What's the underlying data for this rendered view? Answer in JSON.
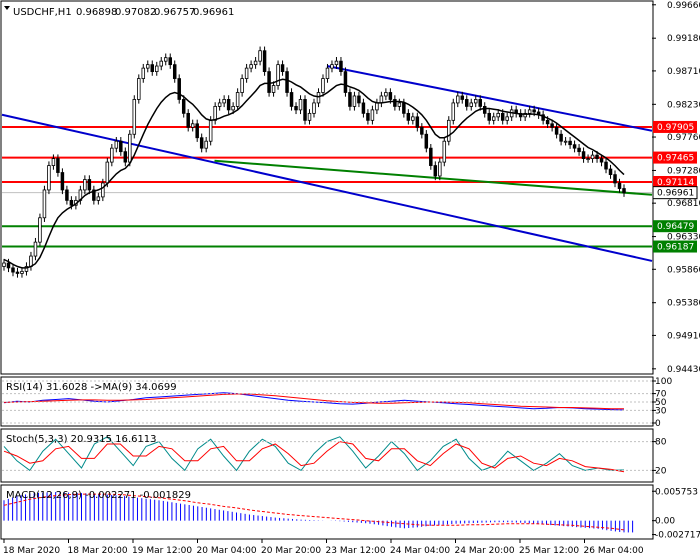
{
  "chart_data": {
    "type": "candlestick",
    "symbol": "USDCHF,H1",
    "ohlc": [
      "0.96898",
      "0.97082",
      "0.96757",
      "0.96961"
    ],
    "current_price": "0.96961",
    "price_axis": {
      "ylim": [
        0.9437,
        0.997
      ],
      "ticks": [
        "0.99660",
        "0.99180",
        "0.98710",
        "0.98230",
        "0.97760",
        "0.97280",
        "0.96810",
        "0.96330",
        "0.95860",
        "0.95380",
        "0.94910",
        "0.94430"
      ]
    },
    "time_axis": [
      "18 Mar 2020",
      "18 Mar 20:00",
      "19 Mar 12:00",
      "20 Mar 04:00",
      "20 Mar 20:00",
      "23 Mar 12:00",
      "24 Mar 04:00",
      "24 Mar 20:00",
      "25 Mar 12:00",
      "26 Mar 04:00"
    ],
    "horizontal_levels": [
      {
        "value": 0.97905,
        "label": "0.97905",
        "color": "#ff0000"
      },
      {
        "value": 0.97465,
        "label": "0.97465",
        "color": "#ff0000"
      },
      {
        "value": 0.97114,
        "label": "0.97114",
        "color": "#ff0000"
      },
      {
        "value": 0.96479,
        "label": "0.96479",
        "color": "#008000"
      },
      {
        "value": 0.96187,
        "label": "0.96187",
        "color": "#008000"
      }
    ],
    "trendlines": [
      {
        "color": "#0000cc",
        "from": [
          0,
          0.9808
        ],
        "to": [
          156,
          0.9598
        ]
      },
      {
        "color": "#0000cc",
        "from": [
          78,
          0.9878
        ],
        "to": [
          156,
          0.9785
        ]
      },
      {
        "color": "#008000",
        "from": [
          51,
          0.9742
        ],
        "to": [
          156,
          0.9693
        ]
      }
    ],
    "price_series": [
      0.9595,
      0.9588,
      0.9582,
      0.958,
      0.9583,
      0.959,
      0.9605,
      0.9625,
      0.966,
      0.97,
      0.9735,
      0.9745,
      0.9725,
      0.97,
      0.9685,
      0.9678,
      0.9685,
      0.97,
      0.9715,
      0.97,
      0.9685,
      0.969,
      0.971,
      0.974,
      0.976,
      0.977,
      0.9755,
      0.974,
      0.978,
      0.983,
      0.986,
      0.9875,
      0.988,
      0.987,
      0.9878,
      0.9885,
      0.989,
      0.988,
      0.986,
      0.983,
      0.981,
      0.979,
      0.9795,
      0.9775,
      0.976,
      0.977,
      0.98,
      0.982,
      0.9825,
      0.983,
      0.9815,
      0.982,
      0.984,
      0.986,
      0.9875,
      0.988,
      0.9885,
      0.99,
      0.987,
      0.984,
      0.985,
      0.988,
      0.987,
      0.984,
      0.982,
      0.9815,
      0.983,
      0.98,
      0.981,
      0.9825,
      0.984,
      0.986,
      0.9875,
      0.988,
      0.9885,
      0.987,
      0.984,
      0.982,
      0.9835,
      0.9825,
      0.981,
      0.98,
      0.9815,
      0.9825,
      0.9835,
      0.984,
      0.983,
      0.982,
      0.9825,
      0.981,
      0.98,
      0.9805,
      0.979,
      0.978,
      0.976,
      0.9735,
      0.972,
      0.974,
      0.977,
      0.98,
      0.9825,
      0.9835,
      0.983,
      0.982,
      0.9825,
      0.983,
      0.982,
      0.981,
      0.98,
      0.9805,
      0.981,
      0.98,
      0.9805,
      0.9815,
      0.981,
      0.9805,
      0.981,
      0.9815,
      0.9812,
      0.9808,
      0.98,
      0.9795,
      0.979,
      0.978,
      0.977,
      0.977,
      0.9765,
      0.976,
      0.9755,
      0.9745,
      0.9745,
      0.975,
      0.9745,
      0.974,
      0.973,
      0.9722,
      0.971,
      0.9702,
      0.9696
    ],
    "ma_series": [
      0.96,
      0.9597,
      0.9593,
      0.959,
      0.9588,
      0.9588,
      0.959,
      0.9594,
      0.9603,
      0.9617,
      0.9633,
      0.9648,
      0.966,
      0.9667,
      0.9672,
      0.9676,
      0.968,
      0.9686,
      0.9692,
      0.9696,
      0.9698,
      0.97,
      0.9703,
      0.9709,
      0.9716,
      0.9723,
      0.9728,
      0.9731,
      0.9738,
      0.975,
      0.9765,
      0.978,
      0.9794,
      0.9806,
      0.9817,
      0.9826,
      0.9833,
      0.9838,
      0.984,
      0.9838,
      0.9834,
      0.9828,
      0.9823,
      0.9816,
      0.9808,
      0.9802,
      0.98,
      0.9801,
      0.9803,
      0.9806,
      0.9808,
      0.9811,
      0.9815,
      0.9821,
      0.9828,
      0.9835,
      0.9842,
      0.985,
      0.9853,
      0.9853,
      0.9854,
      0.9857,
      0.9859,
      0.9858,
      0.9855,
      0.9851,
      0.9848,
      0.9843,
      0.9838,
      0.9835,
      0.9834,
      0.9836,
      0.984,
      0.9845,
      0.985,
      0.9852,
      0.9851,
      0.9848,
      0.9846,
      0.9843,
      0.9838,
      0.9832,
      0.9827,
      0.9825,
      0.9825,
      0.9826,
      0.9827,
      0.9827,
      0.9827,
      0.9826,
      0.9823,
      0.9819,
      0.9814,
      0.9808,
      0.98,
      0.979,
      0.978,
      0.9775,
      0.9775,
      0.9778,
      0.9783,
      0.979,
      0.9797,
      0.9803,
      0.9808,
      0.9813,
      0.9816,
      0.9817,
      0.9817,
      0.9816,
      0.9815,
      0.9813,
      0.9812,
      0.9811,
      0.981,
      0.9809,
      0.9809,
      0.9809,
      0.9809,
      0.9808,
      0.9806,
      0.9803,
      0.98,
      0.9796,
      0.9791,
      0.9786,
      0.9781,
      0.9776,
      0.9771,
      0.9766,
      0.9761,
      0.9758,
      0.9754,
      0.975,
      0.9746,
      0.9741,
      0.9735,
      0.9728,
      0.9722
    ],
    "rsi": {
      "label": "RSI(14) 31.6028 ->MA(9) 34.0699",
      "ticks": [
        "100",
        "70",
        "50",
        "30",
        "0"
      ],
      "levels": [
        70,
        50,
        30
      ],
      "values": [
        48,
        52,
        50,
        54,
        56,
        58,
        55,
        52,
        50,
        53,
        56,
        60,
        62,
        64,
        66,
        68,
        70,
        72,
        70,
        66,
        62,
        58,
        54,
        52,
        50,
        48,
        46,
        45,
        47,
        50,
        52,
        54,
        52,
        50,
        48,
        46,
        44,
        42,
        40,
        38,
        36,
        34,
        35,
        37,
        36,
        34,
        33,
        32,
        31
      ],
      "ma": [
        49,
        50,
        51,
        52,
        53,
        54,
        55,
        55,
        54,
        54,
        55,
        56,
        58,
        60,
        62,
        64,
        66,
        68,
        69,
        69,
        67,
        65,
        62,
        59,
        56,
        53,
        51,
        49,
        48,
        47,
        47,
        48,
        49,
        50,
        50,
        49,
        48,
        46,
        44,
        42,
        40,
        39,
        38,
        37,
        37,
        36,
        35,
        34,
        34
      ]
    },
    "stoch": {
      "label": "Stoch(5,3,3) 20.9315 16.6113",
      "ticks": [
        "80",
        "20"
      ],
      "levels": [
        80,
        20
      ],
      "main": [
        70,
        40,
        20,
        60,
        85,
        55,
        25,
        75,
        90,
        60,
        30,
        70,
        80,
        45,
        20,
        65,
        85,
        50,
        20,
        60,
        85,
        70,
        35,
        20,
        55,
        80,
        90,
        60,
        25,
        50,
        80,
        55,
        20,
        40,
        70,
        85,
        45,
        20,
        30,
        60,
        40,
        20,
        35,
        55,
        30,
        20,
        25,
        20,
        21
      ],
      "signal": [
        60,
        50,
        35,
        40,
        65,
        70,
        45,
        45,
        75,
        75,
        50,
        50,
        70,
        65,
        40,
        40,
        65,
        70,
        40,
        40,
        65,
        75,
        55,
        30,
        35,
        60,
        80,
        75,
        45,
        40,
        65,
        65,
        40,
        30,
        55,
        75,
        65,
        35,
        25,
        45,
        50,
        35,
        30,
        45,
        40,
        28,
        25,
        22,
        17
      ]
    },
    "macd": {
      "label": "MACD(12,26,9) -0.002271 -0.001829",
      "ticks": [
        "0.005753",
        "0.00",
        "-0.002717"
      ],
      "hist": [
        0.004,
        0.0048,
        0.0053,
        0.0055,
        0.0056,
        0.0055,
        0.0054,
        0.0053,
        0.0051,
        0.0049,
        0.0046,
        0.0043,
        0.004,
        0.0036,
        0.0032,
        0.0028,
        0.0024,
        0.002,
        0.0016,
        0.0012,
        0.0009,
        0.0006,
        0.0004,
        0.0002,
        0.0001,
        0.0,
        -0.0001,
        -0.0003,
        -0.0005,
        -0.0008,
        -0.0012,
        -0.0015,
        -0.0013,
        -0.001,
        -0.0008,
        -0.0006,
        -0.0005,
        -0.0004,
        -0.0003,
        -0.0003,
        -0.0004,
        -0.0006,
        -0.0008,
        -0.001,
        -0.0012,
        -0.0014,
        -0.0016,
        -0.002,
        -0.0023
      ],
      "signal": [
        0.003,
        0.0036,
        0.0042,
        0.0046,
        0.0049,
        0.0051,
        0.0052,
        0.0052,
        0.0052,
        0.0051,
        0.0049,
        0.0047,
        0.0045,
        0.0042,
        0.0039,
        0.0035,
        0.0032,
        0.0028,
        0.0025,
        0.0021,
        0.0018,
        0.0015,
        0.0012,
        0.001,
        0.0008,
        0.0006,
        0.0004,
        0.0002,
        0.0,
        -0.0002,
        -0.0004,
        -0.0006,
        -0.0008,
        -0.0009,
        -0.0009,
        -0.0009,
        -0.0008,
        -0.0008,
        -0.0007,
        -0.0006,
        -0.0006,
        -0.0006,
        -0.0007,
        -0.0008,
        -0.0009,
        -0.0011,
        -0.0013,
        -0.0015,
        -0.0018
      ]
    },
    "colors": {
      "bull": "#ffffff",
      "bear": "#000000",
      "ma_line": "#000000",
      "rsi_line": "#0000ff",
      "rsi_ma": "#ff0000",
      "stoch_main": "#008b8b",
      "stoch_signal": "#ff0000",
      "macd_hist": "#0000ff",
      "macd_signal": "#ff0000",
      "price_tag": "#ffffff",
      "grid": "#c0c0c0"
    }
  }
}
